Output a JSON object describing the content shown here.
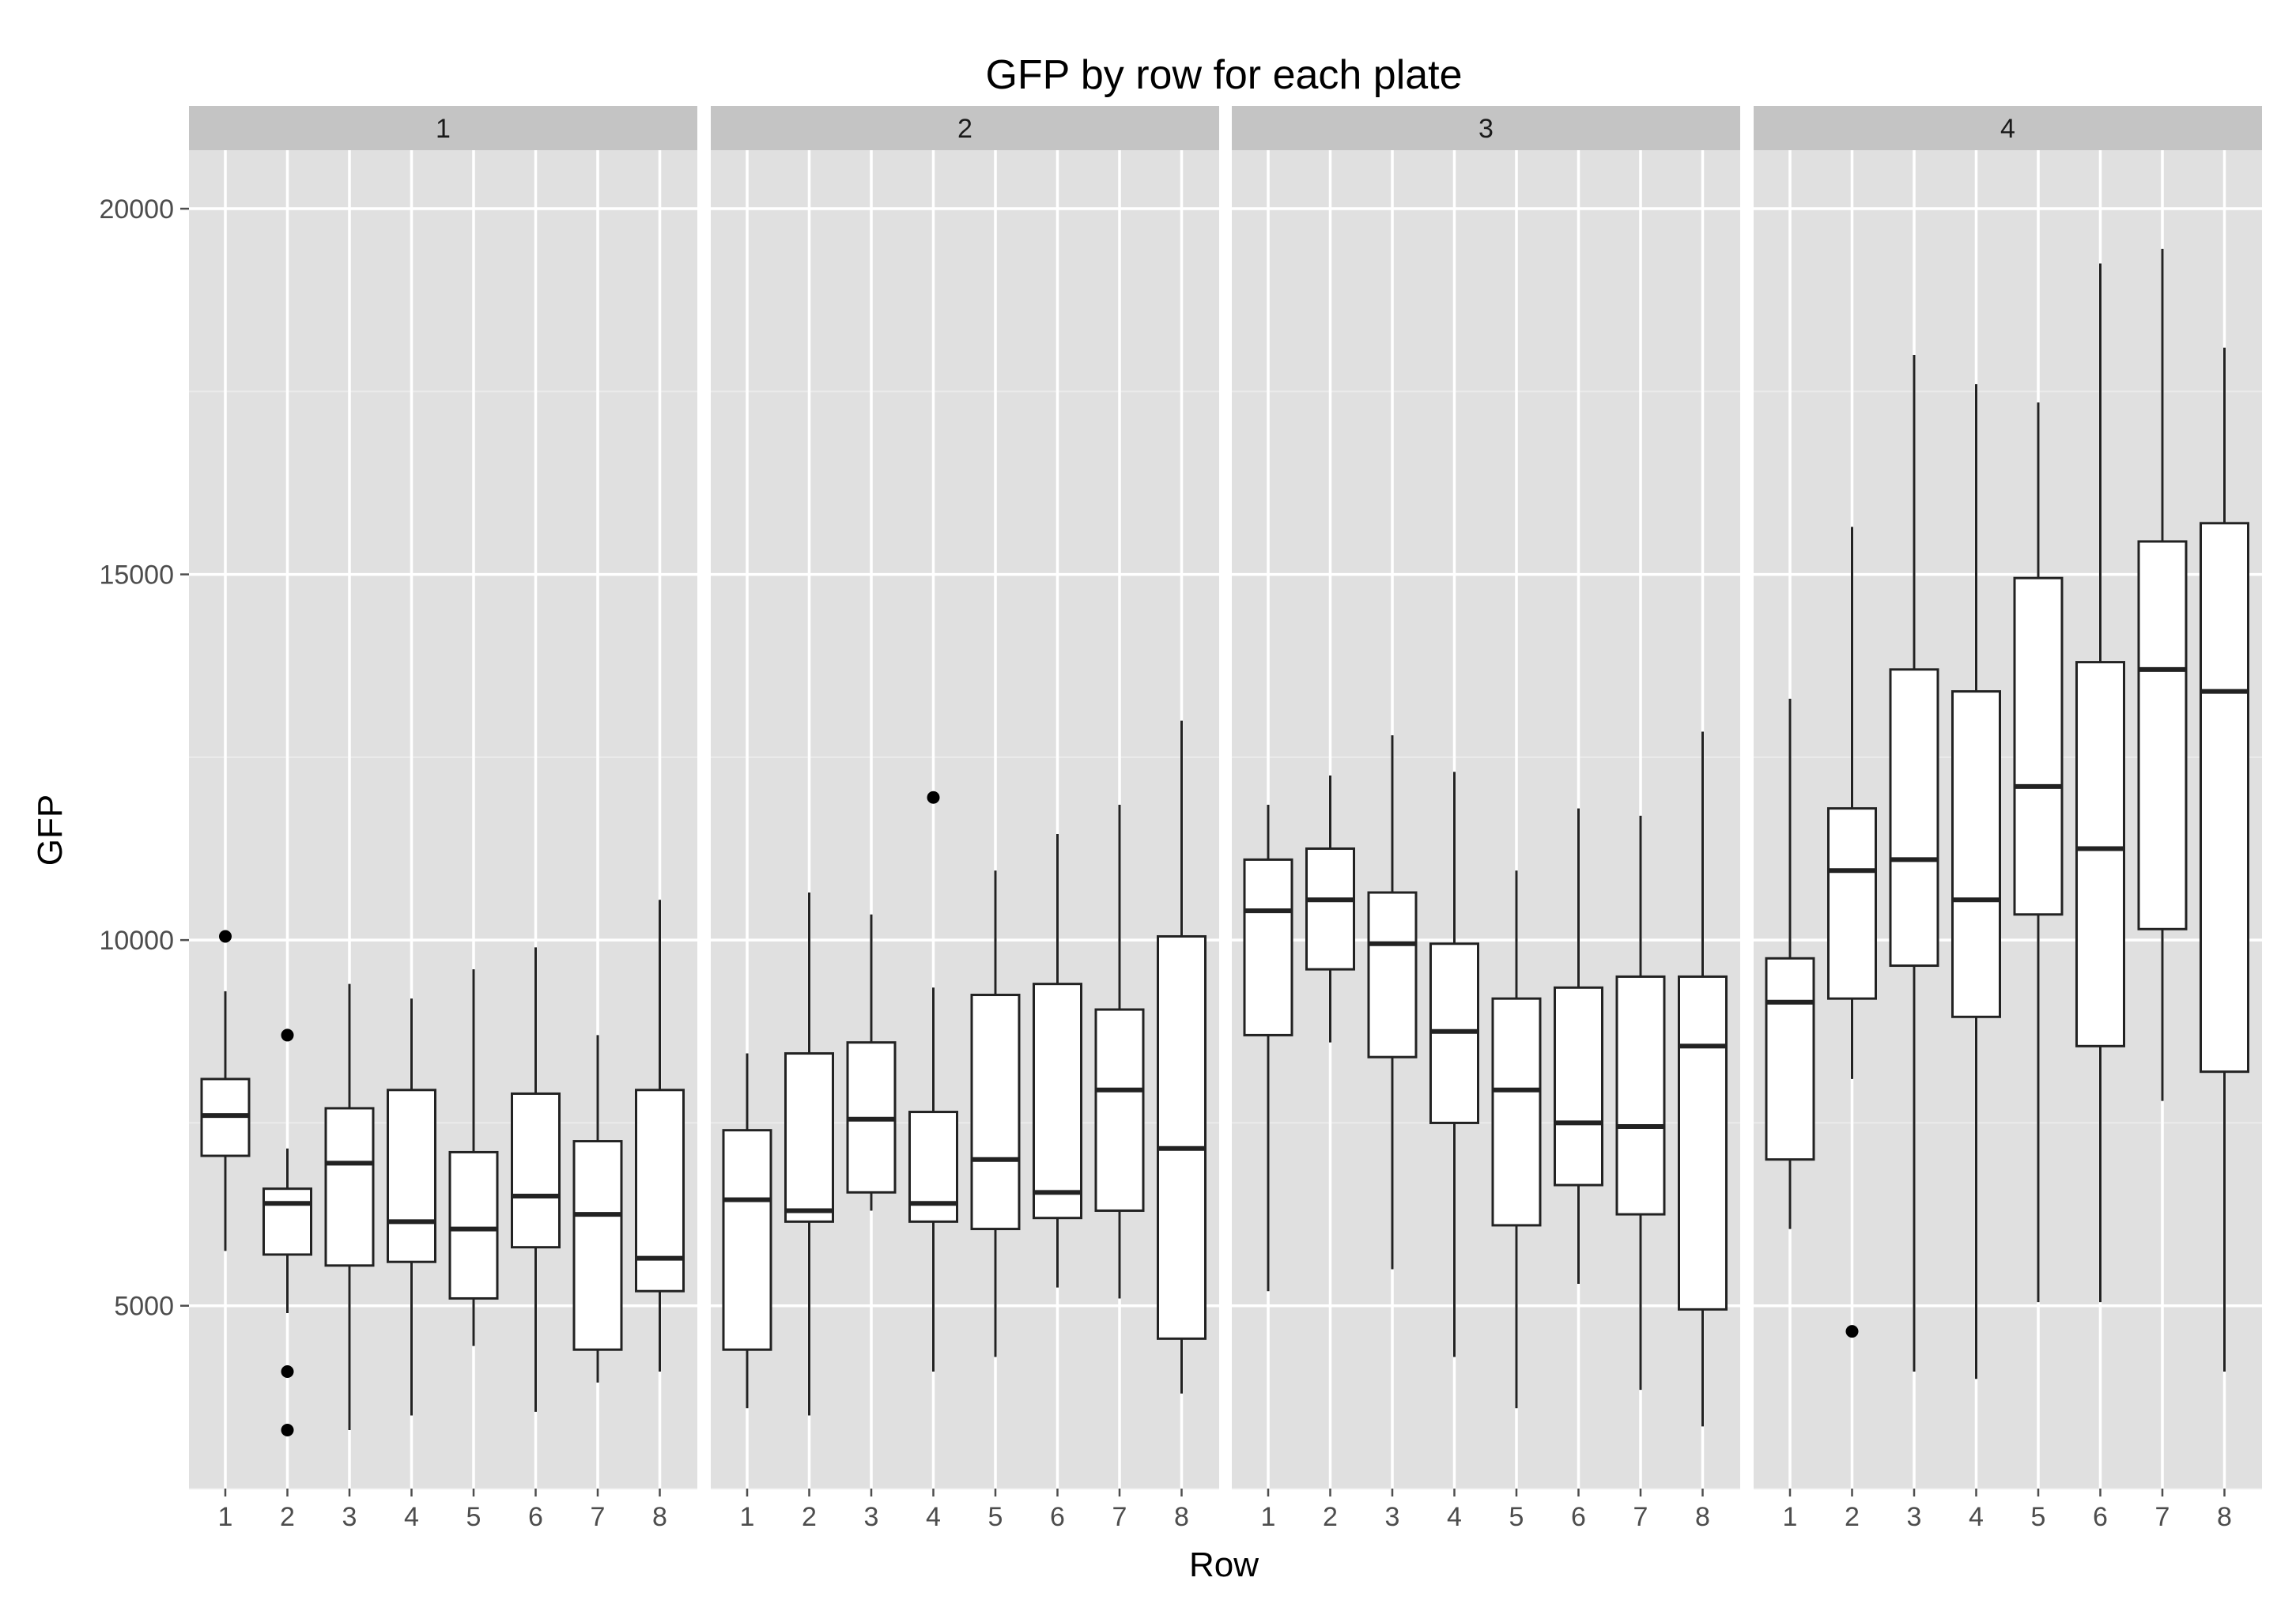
{
  "chart_data": {
    "type": "boxplot",
    "title": "GFP by row for each plate",
    "xlabel": "Row",
    "ylabel": "GFP",
    "ylim": [
      2500,
      20800
    ],
    "yticks": [
      5000,
      10000,
      15000,
      20000
    ],
    "categories": [
      "1",
      "2",
      "3",
      "4",
      "5",
      "6",
      "7",
      "8"
    ],
    "grid": true,
    "colors": {
      "panel_bg": "#E0E0E0",
      "strip_bg": "#C4C4C4",
      "grid_major": "#FFFFFF",
      "grid_minor": "#EBEBEB",
      "box_fill": "#FFFFFF",
      "box_line": "#222222",
      "tick_text": "#4D4D4D"
    },
    "panels": [
      {
        "label": "1",
        "boxes": [
          {
            "row": "1",
            "whisker_low": 5750,
            "q1": 7050,
            "median": 7600,
            "q3": 8100,
            "whisker_high": 9300,
            "outliers": [
              10050
            ]
          },
          {
            "row": "2",
            "whisker_low": 4900,
            "q1": 5700,
            "median": 6400,
            "q3": 6600,
            "whisker_high": 7150,
            "outliers": [
              8700,
              4100,
              3300
            ]
          },
          {
            "row": "3",
            "whisker_low": 3300,
            "q1": 5550,
            "median": 6950,
            "q3": 7700,
            "whisker_high": 9400,
            "outliers": []
          },
          {
            "row": "4",
            "whisker_low": 3500,
            "q1": 5600,
            "median": 6150,
            "q3": 7950,
            "whisker_high": 9200,
            "outliers": []
          },
          {
            "row": "5",
            "whisker_low": 4450,
            "q1": 5100,
            "median": 6050,
            "q3": 7100,
            "whisker_high": 9600,
            "outliers": []
          },
          {
            "row": "6",
            "whisker_low": 3550,
            "q1": 5800,
            "median": 6500,
            "q3": 7900,
            "whisker_high": 9900,
            "outliers": []
          },
          {
            "row": "7",
            "whisker_low": 3950,
            "q1": 4400,
            "median": 6250,
            "q3": 7250,
            "whisker_high": 8700,
            "outliers": []
          },
          {
            "row": "8",
            "whisker_low": 4100,
            "q1": 5200,
            "median": 5650,
            "q3": 7950,
            "whisker_high": 10550,
            "outliers": []
          }
        ]
      },
      {
        "label": "2",
        "boxes": [
          {
            "row": "1",
            "whisker_low": 3600,
            "q1": 4400,
            "median": 6450,
            "q3": 7400,
            "whisker_high": 8450,
            "outliers": []
          },
          {
            "row": "2",
            "whisker_low": 3500,
            "q1": 6150,
            "median": 6300,
            "q3": 8450,
            "whisker_high": 10650,
            "outliers": []
          },
          {
            "row": "3",
            "whisker_low": 6300,
            "q1": 6550,
            "median": 7550,
            "q3": 8600,
            "whisker_high": 10350,
            "outliers": []
          },
          {
            "row": "4",
            "whisker_low": 4100,
            "q1": 6150,
            "median": 6400,
            "q3": 7650,
            "whisker_high": 9350,
            "outliers": [
              11950
            ]
          },
          {
            "row": "5",
            "whisker_low": 4300,
            "q1": 6050,
            "median": 7000,
            "q3": 9250,
            "whisker_high": 10950,
            "outliers": []
          },
          {
            "row": "6",
            "whisker_low": 5250,
            "q1": 6200,
            "median": 6550,
            "q3": 9400,
            "whisker_high": 11450,
            "outliers": []
          },
          {
            "row": "7",
            "whisker_low": 5100,
            "q1": 6300,
            "median": 7950,
            "q3": 9050,
            "whisker_high": 11850,
            "outliers": []
          },
          {
            "row": "8",
            "whisker_low": 3800,
            "q1": 4550,
            "median": 7150,
            "q3": 10050,
            "whisker_high": 13000,
            "outliers": []
          }
        ]
      },
      {
        "label": "3",
        "boxes": [
          {
            "row": "1",
            "whisker_low": 5200,
            "q1": 8700,
            "median": 10400,
            "q3": 11100,
            "whisker_high": 11850,
            "outliers": []
          },
          {
            "row": "2",
            "whisker_low": 8600,
            "q1": 9600,
            "median": 10550,
            "q3": 11250,
            "whisker_high": 12250,
            "outliers": []
          },
          {
            "row": "3",
            "whisker_low": 5500,
            "q1": 8400,
            "median": 9950,
            "q3": 10650,
            "whisker_high": 12800,
            "outliers": []
          },
          {
            "row": "4",
            "whisker_low": 4300,
            "q1": 7500,
            "median": 8750,
            "q3": 9950,
            "whisker_high": 12300,
            "outliers": []
          },
          {
            "row": "5",
            "whisker_low": 3600,
            "q1": 6100,
            "median": 7950,
            "q3": 9200,
            "whisker_high": 10950,
            "outliers": []
          },
          {
            "row": "6",
            "whisker_low": 5300,
            "q1": 6650,
            "median": 7500,
            "q3": 9350,
            "whisker_high": 11800,
            "outliers": []
          },
          {
            "row": "7",
            "whisker_low": 3850,
            "q1": 6250,
            "median": 7450,
            "q3": 9500,
            "whisker_high": 11700,
            "outliers": []
          },
          {
            "row": "8",
            "whisker_low": 3350,
            "q1": 4950,
            "median": 8550,
            "q3": 9500,
            "whisker_high": 12850,
            "outliers": []
          }
        ]
      },
      {
        "label": "4",
        "boxes": [
          {
            "row": "1",
            "whisker_low": 6050,
            "q1": 7000,
            "median": 9150,
            "q3": 9750,
            "whisker_high": 13300,
            "outliers": []
          },
          {
            "row": "2",
            "whisker_low": 8100,
            "q1": 9200,
            "median": 10950,
            "q3": 11800,
            "whisker_high": 15650,
            "outliers": [
              4650
            ]
          },
          {
            "row": "3",
            "whisker_low": 4100,
            "q1": 9650,
            "median": 11100,
            "q3": 13700,
            "whisker_high": 18000,
            "outliers": []
          },
          {
            "row": "4",
            "whisker_low": 4000,
            "q1": 8950,
            "median": 10550,
            "q3": 13400,
            "whisker_high": 17600,
            "outliers": []
          },
          {
            "row": "5",
            "whisker_low": 5050,
            "q1": 10350,
            "median": 12100,
            "q3": 14950,
            "whisker_high": 17350,
            "outliers": []
          },
          {
            "row": "6",
            "whisker_low": 5050,
            "q1": 8550,
            "median": 11250,
            "q3": 13800,
            "whisker_high": 19250,
            "outliers": []
          },
          {
            "row": "7",
            "whisker_low": 7800,
            "q1": 10150,
            "median": 13700,
            "q3": 15450,
            "whisker_high": 19450,
            "outliers": []
          },
          {
            "row": "8",
            "whisker_low": 4100,
            "q1": 8200,
            "median": 13400,
            "q3": 15700,
            "whisker_high": 18100,
            "outliers": []
          }
        ]
      }
    ]
  }
}
